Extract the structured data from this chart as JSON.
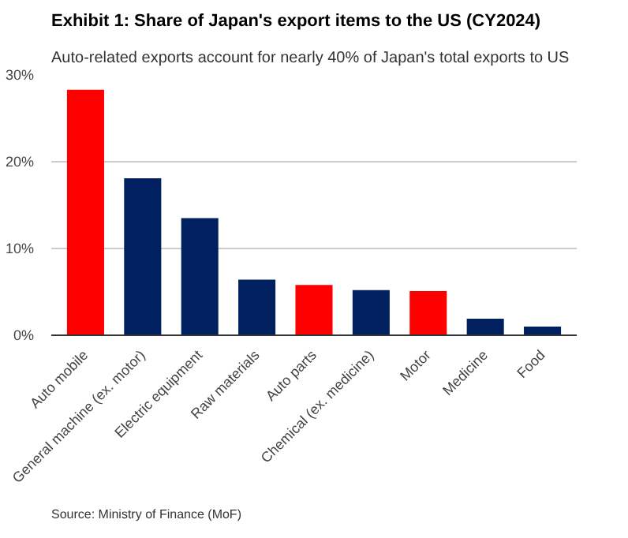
{
  "chart_data": {
    "type": "bar",
    "title": "Exhibit 1: Share of Japan's export items to the US (CY2024)",
    "subtitle": "Auto-related exports account for nearly 40% of Japan's total exports to US",
    "categories": [
      "Auto mobile",
      "General machine (ex. motor)",
      "Electric equipment",
      "Raw materials",
      "Auto parts",
      "Chemical (ex. medicine)",
      "Motor",
      "Medicine",
      "Food"
    ],
    "values": [
      28.3,
      18.1,
      13.5,
      6.4,
      5.8,
      5.2,
      5.1,
      1.9,
      1.0
    ],
    "colors": [
      "#ff0000",
      "#002060",
      "#002060",
      "#002060",
      "#ff0000",
      "#002060",
      "#ff0000",
      "#002060",
      "#002060"
    ],
    "ylim": [
      0,
      30
    ],
    "yticks": [
      {
        "value": 0,
        "label": "0%"
      },
      {
        "value": 10,
        "label": "10%"
      },
      {
        "value": 20,
        "label": "20%"
      },
      {
        "value": 30,
        "label": "30%"
      }
    ],
    "grid": "y",
    "annotations": [
      "Source: Ministry of Finance (MoF)"
    ]
  }
}
